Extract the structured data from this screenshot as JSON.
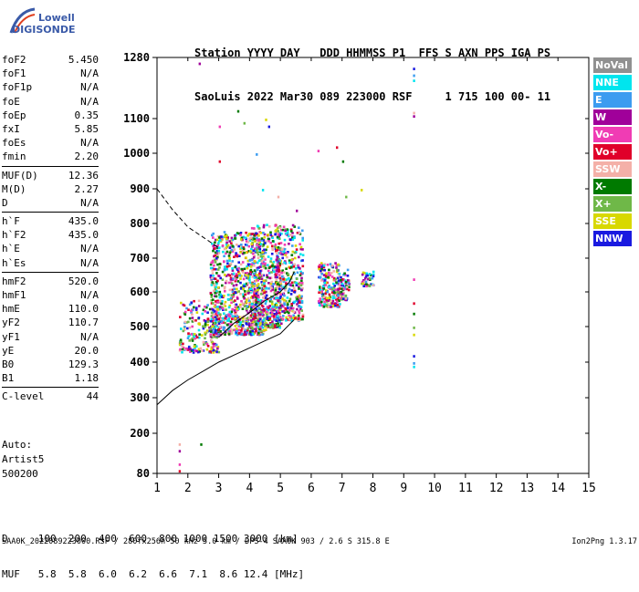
{
  "logo": {
    "line1": "Lowell",
    "line2": "DIGISONDE"
  },
  "header": {
    "line1": "Station YYYY DAY   DDD HHMMSS P1  FFS S AXN PPS IGA PS",
    "line2": "SaoLuis 2022 Mar30 089 223000 RSF     1 715 100 00- 11"
  },
  "params": [
    [
      {
        "k": "foF2",
        "v": "5.450"
      },
      {
        "k": "foF1",
        "v": "N/A"
      },
      {
        "k": "foF1p",
        "v": "N/A"
      },
      {
        "k": "foE",
        "v": "N/A"
      },
      {
        "k": "foEp",
        "v": "0.35"
      },
      {
        "k": "fxI",
        "v": "5.85"
      },
      {
        "k": "foEs",
        "v": "N/A"
      },
      {
        "k": "fmin",
        "v": "2.20"
      }
    ],
    [
      {
        "k": "MUF(D)",
        "v": "12.36"
      },
      {
        "k": "M(D)",
        "v": "2.27"
      },
      {
        "k": "D",
        "v": "N/A"
      }
    ],
    [
      {
        "k": "h`F",
        "v": "435.0"
      },
      {
        "k": "h`F2",
        "v": "435.0"
      },
      {
        "k": "h`E",
        "v": "N/A"
      },
      {
        "k": "h`Es",
        "v": "N/A"
      }
    ],
    [
      {
        "k": "hmF2",
        "v": "520.0"
      },
      {
        "k": "hmF1",
        "v": "N/A"
      },
      {
        "k": "hmE",
        "v": "110.0"
      },
      {
        "k": "yF2",
        "v": "110.7"
      },
      {
        "k": "yF1",
        "v": "N/A"
      },
      {
        "k": "yE",
        "v": "20.0"
      },
      {
        "k": "B0",
        "v": "129.3"
      },
      {
        "k": "B1",
        "v": "1.18"
      }
    ],
    [
      {
        "k": "C-level",
        "v": "44"
      }
    ]
  ],
  "auto": {
    "line1": "Auto:",
    "line2": "Artist5",
    "line3": "500200"
  },
  "legend": [
    {
      "label": "NoVal",
      "color": "#909090"
    },
    {
      "label": "NNE",
      "color": "#00e5ee"
    },
    {
      "label": "E",
      "color": "#3c9cf0"
    },
    {
      "label": "W",
      "color": "#a0009a"
    },
    {
      "label": "Vo-",
      "color": "#f03cb4"
    },
    {
      "label": "Vo+",
      "color": "#e0002a"
    },
    {
      "label": "SSW",
      "color": "#f4b0a8"
    },
    {
      "label": "X-",
      "color": "#007a00"
    },
    {
      "label": "X+",
      "color": "#6fb848"
    },
    {
      "label": "SSE",
      "color": "#d8d800"
    },
    {
      "label": "NNW",
      "color": "#1a1ae0"
    }
  ],
  "bottom": {
    "d_row": "D     100  200  400  600  800 1000 1500 3000 [km]",
    "muf_row": "MUF   5.8  5.8  6.0  6.2  6.6  7.1  8.6 12.4 [MHz]"
  },
  "footer": {
    "left": "SAA0K_2022089223000.RSF / 280fx256h 50 kHz 5.0 km / DPS-4 SAA0K 903 / 2.6 S 315.8 E",
    "right": "Ion2Png 1.3.17"
  },
  "chart_data": {
    "type": "scatter",
    "xlim": [
      1,
      15
    ],
    "ylim": [
      80,
      1280
    ],
    "x_ticks": [
      1,
      2,
      3,
      4,
      5,
      6,
      7,
      8,
      9,
      10,
      11,
      12,
      13,
      14,
      15
    ],
    "y_ticks": [
      80,
      200,
      300,
      400,
      500,
      600,
      700,
      800,
      900,
      1000,
      1100,
      1280
    ],
    "grid": false,
    "legend_placement": "right",
    "y_scale": "ionogram",
    "curves": {
      "dashed": [
        [
          1.0,
          900
        ],
        [
          1.5,
          840
        ],
        [
          2.0,
          790
        ],
        [
          2.5,
          760
        ],
        [
          3.0,
          730
        ]
      ],
      "virtual_height": [
        [
          3.0,
          470
        ],
        [
          3.5,
          510
        ],
        [
          4.0,
          540
        ],
        [
          4.5,
          575
        ],
        [
          5.0,
          600
        ],
        [
          5.3,
          630
        ],
        [
          5.45,
          660
        ]
      ],
      "true_height": [
        [
          1.0,
          280
        ],
        [
          1.5,
          320
        ],
        [
          2.0,
          350
        ],
        [
          2.5,
          375
        ],
        [
          3.0,
          400
        ],
        [
          3.5,
          420
        ],
        [
          4.0,
          440
        ],
        [
          4.5,
          460
        ],
        [
          5.0,
          480
        ],
        [
          5.45,
          520
        ]
      ]
    },
    "clusters": [
      {
        "x": [
          1.7,
          3.0
        ],
        "y": [
          430,
          580
        ],
        "n": 220
      },
      {
        "x": [
          2.7,
          4.5
        ],
        "y": [
          480,
          780
        ],
        "n": 900
      },
      {
        "x": [
          4.0,
          5.0
        ],
        "y": [
          500,
          800
        ],
        "n": 420
      },
      {
        "x": [
          4.8,
          5.7
        ],
        "y": [
          520,
          800
        ],
        "n": 380
      },
      {
        "x": [
          6.2,
          6.9
        ],
        "y": [
          560,
          690
        ],
        "n": 220
      },
      {
        "x": [
          6.9,
          7.2
        ],
        "y": [
          580,
          670
        ],
        "n": 60
      },
      {
        "x": [
          7.6,
          8.0
        ],
        "y": [
          620,
          665
        ],
        "n": 40
      }
    ],
    "sparse_points": [
      [
        2.35,
        1265
      ],
      [
        3.0,
        1080
      ],
      [
        3.0,
        980
      ],
      [
        3.6,
        1125
      ],
      [
        3.8,
        1090
      ],
      [
        4.5,
        1100
      ],
      [
        4.6,
        1080
      ],
      [
        4.2,
        1000
      ],
      [
        4.4,
        900
      ],
      [
        4.9,
        880
      ],
      [
        5.5,
        840
      ],
      [
        6.2,
        1010
      ],
      [
        6.8,
        1020
      ],
      [
        7.0,
        980
      ],
      [
        7.1,
        880
      ],
      [
        7.6,
        900
      ],
      [
        9.3,
        1250
      ],
      [
        9.3,
        1230
      ],
      [
        9.3,
        1215
      ],
      [
        9.3,
        1120
      ],
      [
        9.3,
        1110
      ],
      [
        9.3,
        640
      ],
      [
        9.3,
        570
      ],
      [
        9.3,
        540
      ],
      [
        9.3,
        500
      ],
      [
        9.3,
        480
      ],
      [
        9.3,
        420
      ],
      [
        9.3,
        400
      ],
      [
        9.3,
        390
      ],
      [
        1.7,
        170
      ],
      [
        1.7,
        150
      ],
      [
        1.7,
        110
      ],
      [
        1.7,
        90
      ],
      [
        2.4,
        170
      ]
    ]
  }
}
